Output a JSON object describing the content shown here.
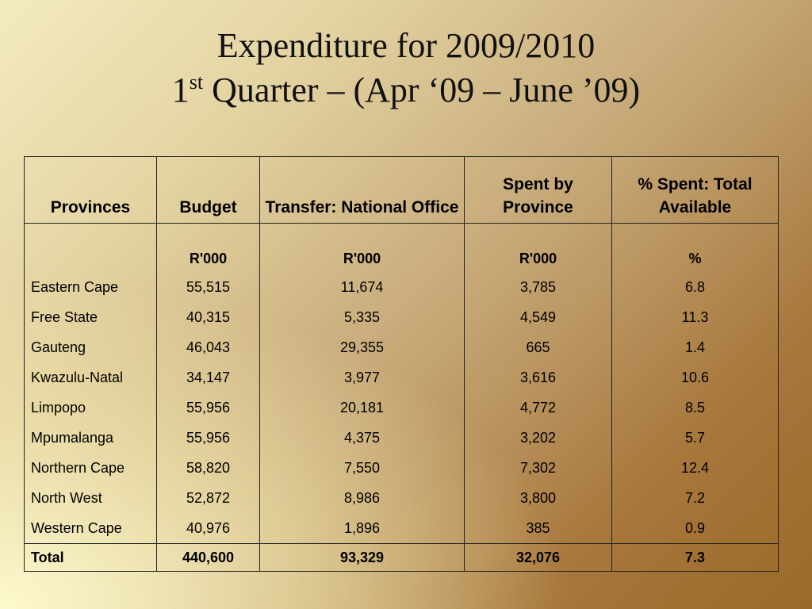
{
  "title": {
    "line1": "Expenditure for 2009/2010",
    "line2_number": "1",
    "line2_sup": "st",
    "line2_rest": " Quarter – (Apr ‘09 – June ’09)"
  },
  "table": {
    "headers": [
      "Provinces",
      "Budget",
      "Transfer: National Office",
      "Spent by Province",
      "% Spent: Total Available"
    ],
    "units": [
      "",
      "R'000",
      "R'000",
      "R'000",
      "%"
    ],
    "rows": [
      [
        "Eastern Cape",
        "55,515",
        "11,674",
        "3,785",
        "6.8"
      ],
      [
        "Free State",
        "40,315",
        "5,335",
        "4,549",
        "11.3"
      ],
      [
        "Gauteng",
        "46,043",
        "29,355",
        "665",
        "1.4"
      ],
      [
        "Kwazulu-Natal",
        "34,147",
        "3,977",
        "3,616",
        "10.6"
      ],
      [
        "Limpopo",
        "55,956",
        "20,181",
        "4,772",
        "8.5"
      ],
      [
        "Mpumalanga",
        "55,956",
        "4,375",
        "3,202",
        "5.7"
      ],
      [
        "Northern Cape",
        "58,820",
        "7,550",
        "7,302",
        "12.4"
      ],
      [
        "North West",
        "52,872",
        "8,986",
        "3,800",
        "7.2"
      ],
      [
        "Western Cape",
        "40,976",
        "1,896",
        "385",
        "0.9"
      ]
    ],
    "total": [
      "Total",
      "440,600",
      "93,329",
      "32,076",
      "7.3"
    ]
  }
}
